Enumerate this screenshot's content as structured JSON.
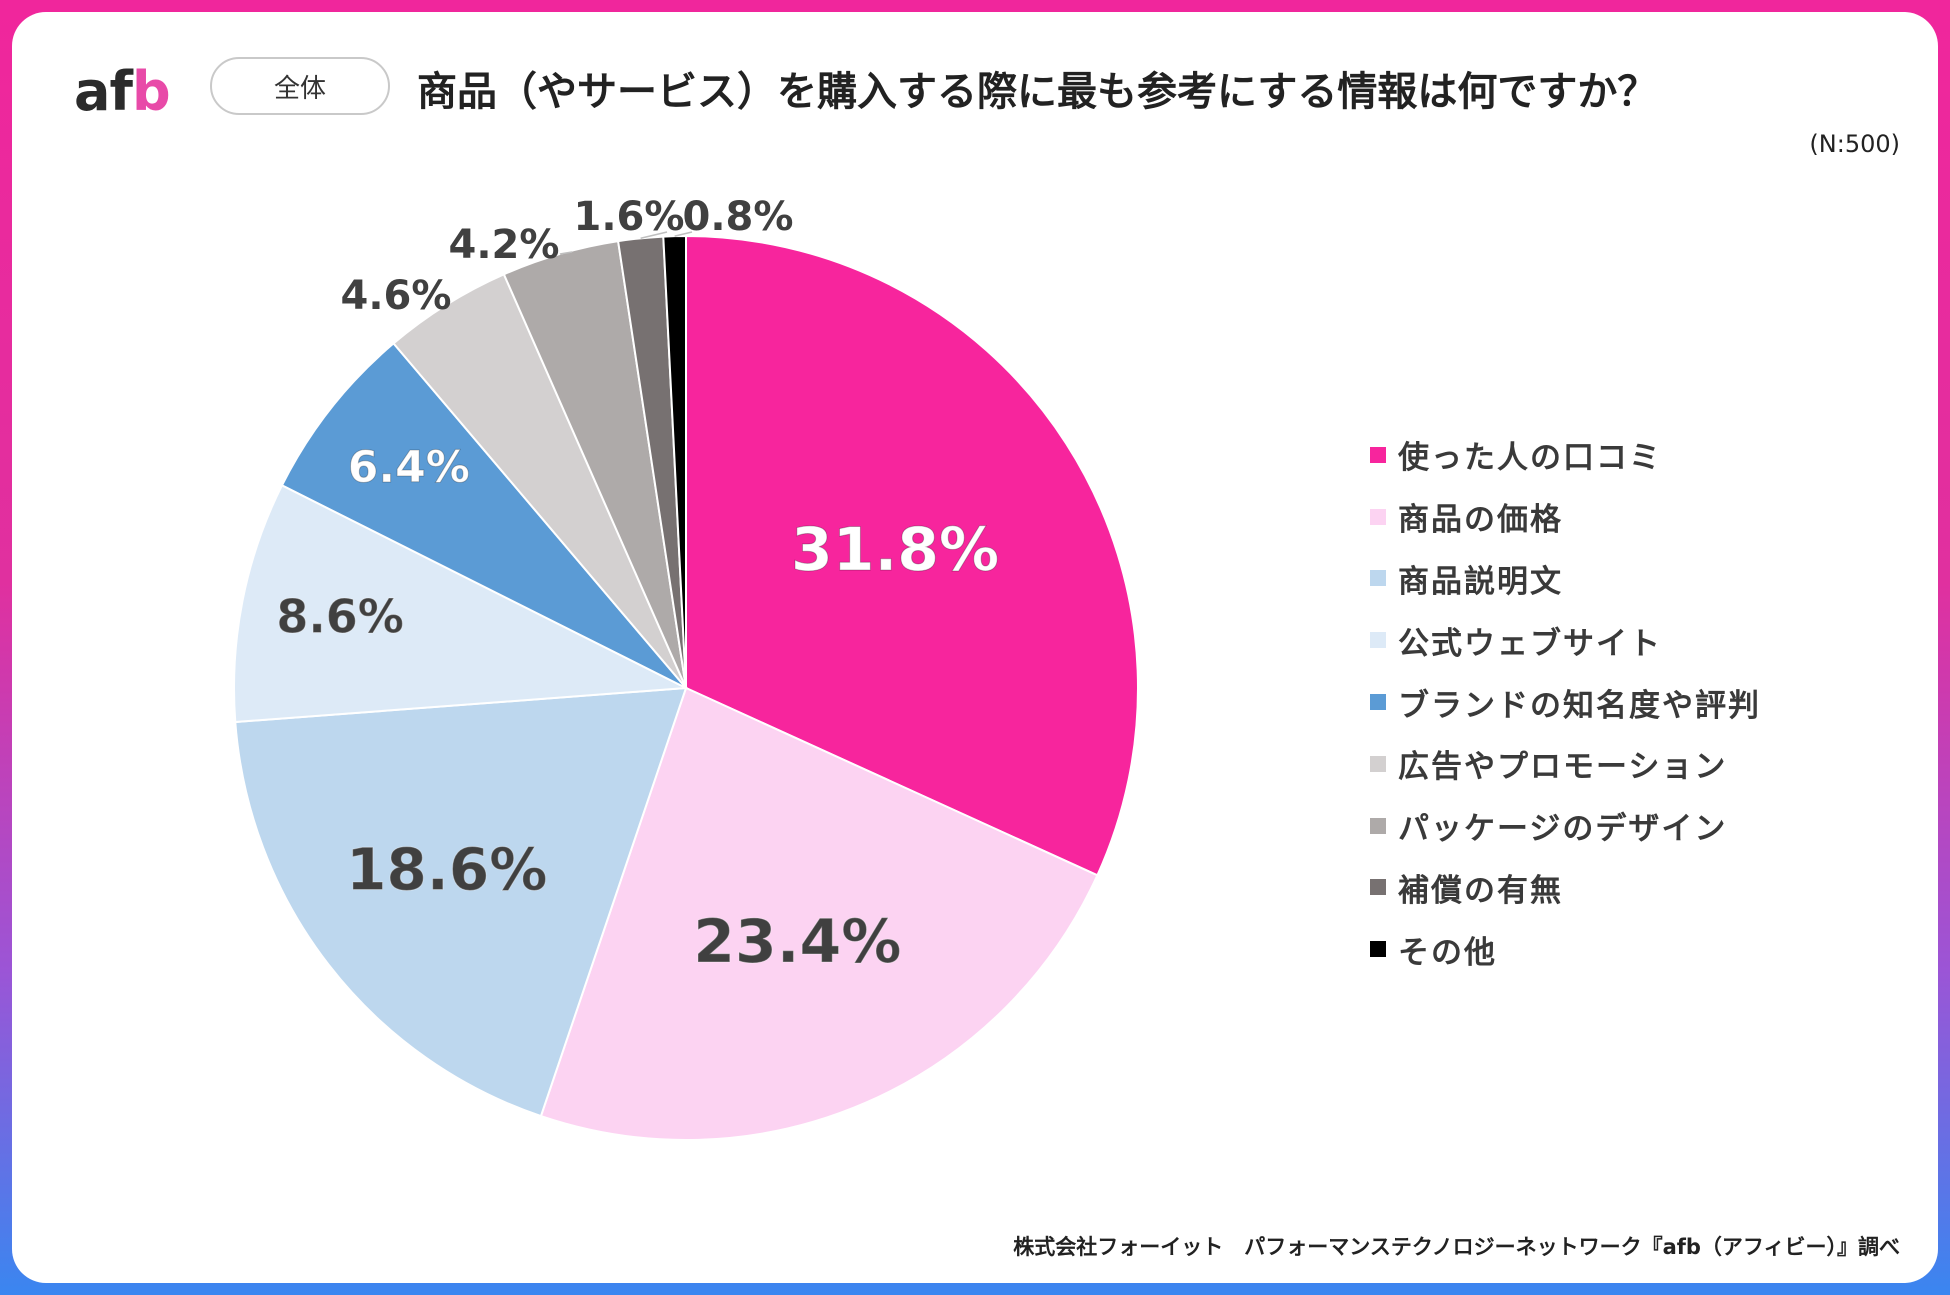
{
  "brand": {
    "logo_main": "af",
    "logo_accent": "b"
  },
  "header": {
    "tag": "全体",
    "title": "商品（やサービス）を購入する際に最も参考にする情報は何ですか？",
    "sample": "(N:500)"
  },
  "footer": {
    "credit": "株式会社フォーイット　パフォーマンステクノロジーネットワーク『afb（アフィビー）』調べ"
  },
  "colors": {
    "accent": "#f0269c",
    "label_dark": "#404040",
    "label_light": "#ffffff"
  },
  "chart_data": {
    "type": "pie",
    "title": "商品（やサービス）を購入する際に最も参考にする情報は何ですか？",
    "n": 500,
    "start": "12 o'clock, clockwise",
    "legend_position": "right",
    "slices": [
      {
        "label": "使った人の口コミ",
        "value": 31.8,
        "display": "31.8%",
        "color": "#f7259d"
      },
      {
        "label": "商品の価格",
        "value": 23.4,
        "display": "23.4%",
        "color": "#fcd3f2"
      },
      {
        "label": "商品説明文",
        "value": 18.6,
        "display": "18.6%",
        "color": "#bdd7ee"
      },
      {
        "label": "公式ウェブサイト",
        "value": 8.6,
        "display": "8.6%",
        "color": "#ddeaf7"
      },
      {
        "label": "ブランドの知名度や評判",
        "value": 6.4,
        "display": "6.4%",
        "color": "#5b9bd5"
      },
      {
        "label": "広告やプロモーション",
        "value": 4.6,
        "display": "4.6%",
        "color": "#d3d0d0"
      },
      {
        "label": "パッケージのデザイン",
        "value": 4.2,
        "display": "4.2%",
        "color": "#aeaaa9"
      },
      {
        "label": "補償の有無",
        "value": 1.6,
        "display": "1.6%",
        "color": "#777171"
      },
      {
        "label": "その他",
        "value": 0.8,
        "display": "0.8%",
        "color": "#000000"
      }
    ]
  }
}
